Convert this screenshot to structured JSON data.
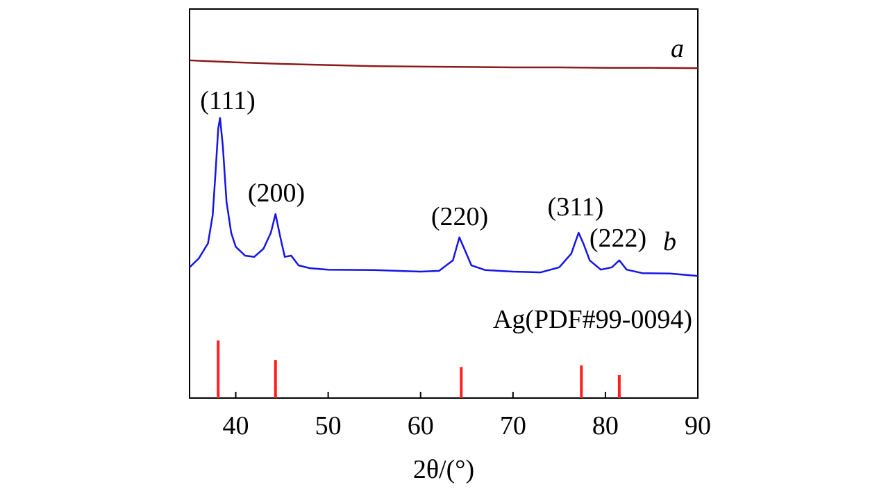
{
  "chart_data": {
    "type": "line",
    "x_label": "2θ/(°)",
    "xlim": [
      35,
      90
    ],
    "xticks": [
      40,
      50,
      60,
      70,
      80,
      90
    ],
    "ylim": [
      0,
      100
    ],
    "annotations": [
      "(111)",
      "(200)",
      "(220)",
      "(311)",
      "(222)"
    ],
    "series": [
      {
        "name": "a",
        "color": "#8b1a1a",
        "x": [
          35,
          40,
          45,
          50,
          55,
          60,
          65,
          70,
          75,
          80,
          85,
          90
        ],
        "values": [
          86.8,
          86.3,
          85.9,
          85.6,
          85.3,
          85.2,
          85.1,
          85,
          85,
          84.9,
          84.9,
          84.8
        ]
      },
      {
        "name": "b",
        "color": "#1414e6",
        "x": [
          35,
          36,
          37,
          37.5,
          37.8,
          38.1,
          38.3,
          38.6,
          39,
          39.5,
          40,
          41,
          42,
          43,
          43.8,
          44.3,
          44.8,
          45.3,
          46,
          46.8,
          48,
          50,
          55,
          60,
          62,
          63.5,
          64.2,
          64.8,
          65.5,
          67,
          70,
          73,
          75,
          76.3,
          77.1,
          77.6,
          78.3,
          79.5,
          80.7,
          81.5,
          82.3,
          84,
          87,
          90
        ],
        "values": [
          33.6,
          35.9,
          39.8,
          47,
          57.7,
          69.3,
          72,
          64.8,
          50.5,
          42.5,
          38.9,
          36.6,
          36.3,
          38.4,
          42.5,
          47.3,
          41.6,
          36.3,
          36.6,
          34.1,
          33.4,
          33,
          32.9,
          32.5,
          32.7,
          35.4,
          41.3,
          38,
          34.1,
          32.9,
          32.5,
          32.3,
          33.6,
          37.1,
          42.5,
          39.8,
          35.4,
          33,
          33.6,
          35.4,
          33,
          32.1,
          32,
          31.4
        ]
      },
      {
        "name": "Ag(PDF#99-0094)",
        "color": "#ff2020",
        "style": "stick",
        "x": [
          38.1,
          44.3,
          64.4,
          77.4,
          81.5
        ],
        "values": [
          14.8,
          9.8,
          8.0,
          8.4,
          5.9
        ]
      }
    ]
  }
}
